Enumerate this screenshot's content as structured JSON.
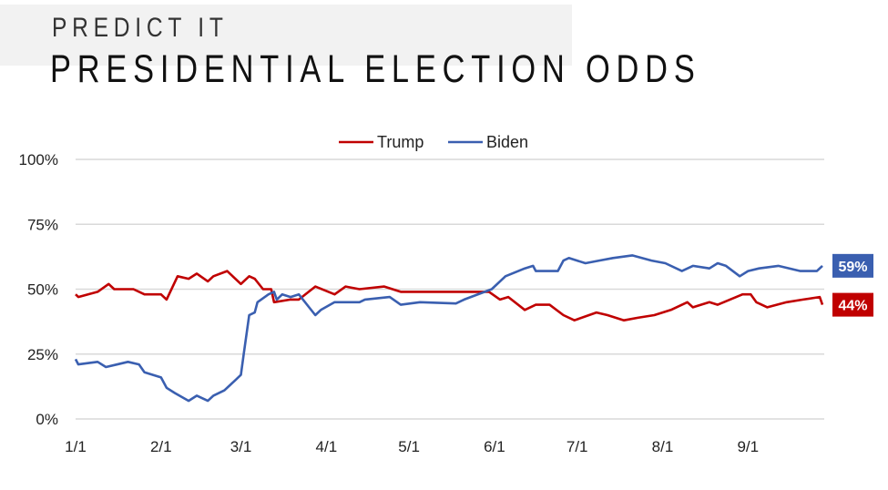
{
  "header": {
    "subtitle": "PREDICT IT",
    "title": "PRESIDENTIAL ELECTION ODDS"
  },
  "chart_data": {
    "type": "line",
    "title": "PRESIDENTIAL ELECTION ODDS",
    "xlabel": "",
    "ylabel": "",
    "x_unit": "days since 1/1",
    "xlim": [
      0,
      271
    ],
    "ylim": [
      0,
      100
    ],
    "y_ticks": [
      {
        "value": 0,
        "label": "0%"
      },
      {
        "value": 25,
        "label": "25%"
      },
      {
        "value": 50,
        "label": "50%"
      },
      {
        "value": 75,
        "label": "75%"
      },
      {
        "value": 100,
        "label": "100%"
      }
    ],
    "x_ticks": [
      {
        "value": 0,
        "label": "1/1"
      },
      {
        "value": 31,
        "label": "2/1"
      },
      {
        "value": 60,
        "label": "3/1"
      },
      {
        "value": 91,
        "label": "4/1"
      },
      {
        "value": 121,
        "label": "5/1"
      },
      {
        "value": 152,
        "label": "6/1"
      },
      {
        "value": 182,
        "label": "7/1"
      },
      {
        "value": 213,
        "label": "8/1"
      },
      {
        "value": 244,
        "label": "9/1"
      }
    ],
    "grid": true,
    "legend_position": "top-center",
    "series": [
      {
        "name": "Trump",
        "color": "#c00000",
        "end_label": "44%",
        "points": [
          [
            0,
            48
          ],
          [
            1,
            47
          ],
          [
            8,
            49
          ],
          [
            12,
            52
          ],
          [
            14,
            50
          ],
          [
            21,
            50
          ],
          [
            25,
            48
          ],
          [
            31,
            48
          ],
          [
            33,
            46
          ],
          [
            37,
            55
          ],
          [
            41,
            54
          ],
          [
            44,
            56
          ],
          [
            48,
            53
          ],
          [
            50,
            55
          ],
          [
            55,
            57
          ],
          [
            60,
            52
          ],
          [
            63,
            55
          ],
          [
            65,
            54
          ],
          [
            68,
            50
          ],
          [
            71,
            50
          ],
          [
            72,
            45
          ],
          [
            78,
            46
          ],
          [
            81,
            46
          ],
          [
            87,
            51
          ],
          [
            94,
            48
          ],
          [
            98,
            51
          ],
          [
            103,
            50
          ],
          [
            112,
            51
          ],
          [
            118,
            49
          ],
          [
            123,
            49
          ],
          [
            138,
            49
          ],
          [
            150,
            49
          ],
          [
            154,
            46
          ],
          [
            157,
            47
          ],
          [
            163,
            42
          ],
          [
            167,
            44
          ],
          [
            172,
            44
          ],
          [
            177,
            40
          ],
          [
            181,
            38
          ],
          [
            189,
            41
          ],
          [
            193,
            40
          ],
          [
            199,
            38
          ],
          [
            204,
            39
          ],
          [
            210,
            40
          ],
          [
            216,
            42
          ],
          [
            222,
            45
          ],
          [
            224,
            43
          ],
          [
            230,
            45
          ],
          [
            233,
            44
          ],
          [
            242,
            48
          ],
          [
            245,
            48
          ],
          [
            247,
            45
          ],
          [
            251,
            43
          ],
          [
            258,
            45
          ],
          [
            264,
            46
          ],
          [
            270,
            47
          ],
          [
            271,
            44
          ]
        ]
      },
      {
        "name": "Biden",
        "color": "#3a5fb0",
        "end_label": "59%",
        "points": [
          [
            0,
            23
          ],
          [
            1,
            21
          ],
          [
            8,
            22
          ],
          [
            11,
            20
          ],
          [
            19,
            22
          ],
          [
            23,
            21
          ],
          [
            25,
            18
          ],
          [
            31,
            16
          ],
          [
            33,
            12
          ],
          [
            36,
            10
          ],
          [
            41,
            7
          ],
          [
            44,
            9
          ],
          [
            48,
            7
          ],
          [
            50,
            9
          ],
          [
            54,
            11
          ],
          [
            58,
            15
          ],
          [
            60,
            17
          ],
          [
            61,
            25
          ],
          [
            63,
            40
          ],
          [
            65,
            41
          ],
          [
            66,
            45
          ],
          [
            70,
            48
          ],
          [
            72,
            49
          ],
          [
            73,
            46
          ],
          [
            75,
            48
          ],
          [
            78,
            47
          ],
          [
            81,
            48
          ],
          [
            87,
            40
          ],
          [
            89,
            42
          ],
          [
            94,
            45
          ],
          [
            103,
            45
          ],
          [
            105,
            46
          ],
          [
            114,
            47
          ],
          [
            118,
            44
          ],
          [
            125,
            45
          ],
          [
            138,
            44.5
          ],
          [
            141,
            46
          ],
          [
            151,
            50
          ],
          [
            156,
            55
          ],
          [
            163,
            58
          ],
          [
            166,
            59
          ],
          [
            167,
            57
          ],
          [
            175,
            57
          ],
          [
            177,
            61
          ],
          [
            179,
            62
          ],
          [
            185,
            60
          ],
          [
            190,
            61
          ],
          [
            195,
            62
          ],
          [
            202,
            63
          ],
          [
            209,
            61
          ],
          [
            214,
            60
          ],
          [
            220,
            57
          ],
          [
            224,
            59
          ],
          [
            230,
            58
          ],
          [
            233,
            60
          ],
          [
            236,
            59
          ],
          [
            241,
            55
          ],
          [
            244,
            57
          ],
          [
            248,
            58
          ],
          [
            255,
            59
          ],
          [
            263,
            57
          ],
          [
            269,
            57
          ],
          [
            271,
            59
          ]
        ]
      }
    ]
  }
}
